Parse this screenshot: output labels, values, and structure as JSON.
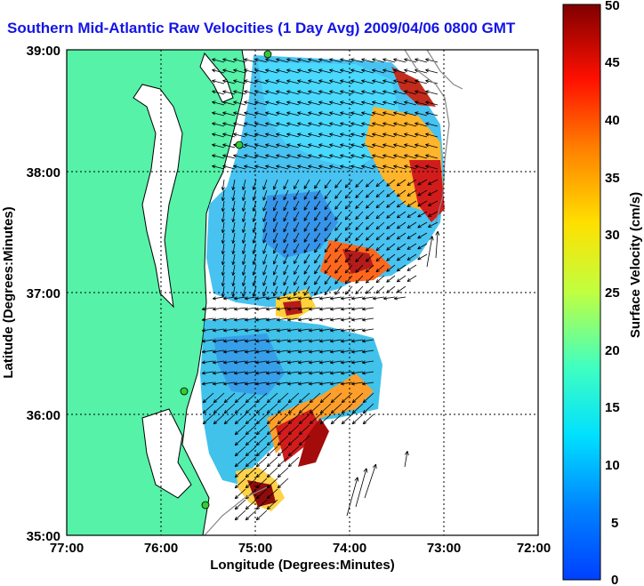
{
  "title": "Southern Mid-Atlantic Raw Velocities (1 Day Avg) 2009/04/06 0800 GMT",
  "x_axis": {
    "label": "Longitude (Degrees:Minutes)",
    "ticks": [
      "77:00",
      "76:00",
      "75:00",
      "74:00",
      "73:00",
      "72:00"
    ]
  },
  "y_axis": {
    "label": "Latitude (Degrees:Minutes)",
    "ticks": [
      "39:00",
      "38:00",
      "37:00",
      "36:00",
      "35:00"
    ]
  },
  "colorbar": {
    "label": "Surface Velocity (cm/s)",
    "ticks": [
      "50",
      "45",
      "40",
      "35",
      "30",
      "25",
      "20",
      "15",
      "10",
      "5",
      "0"
    ],
    "min": 0,
    "max": 50
  },
  "colors": {
    "land": "#55f2a8",
    "title": "#1414e6",
    "station": "#33cc33"
  }
}
